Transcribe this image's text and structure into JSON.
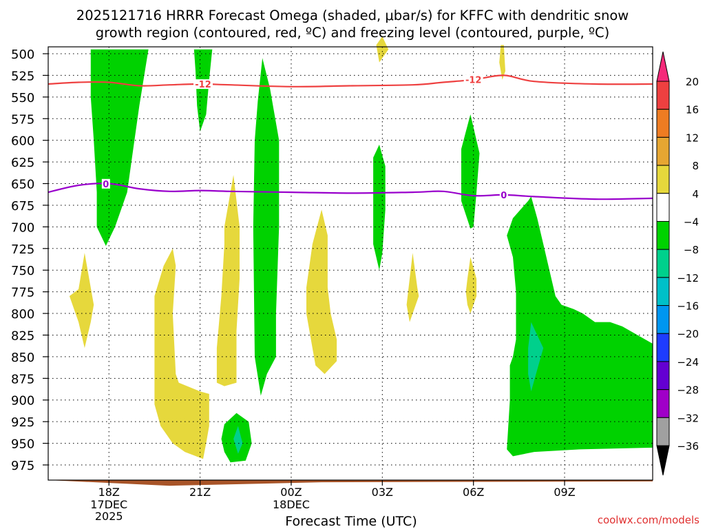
{
  "chart_data": {
    "type": "heatmap",
    "title_line1": "2025121716 HRRR Forecast Omega (shaded, μbar/s) for KFFC with dendritic snow",
    "title_line2": "growth region (contoured, red, ºC) and freezing level (contoured, purple, ºC)",
    "xlabel": "Forecast Time (UTC)",
    "ylabel": "",
    "y_ticks": [
      500,
      525,
      550,
      575,
      600,
      625,
      650,
      675,
      700,
      725,
      750,
      775,
      800,
      825,
      850,
      875,
      900,
      925,
      950,
      975
    ],
    "ylim": [
      1000,
      495
    ],
    "x_ticks": [
      {
        "hour": 18,
        "label": "18Z",
        "date": "17DEC",
        "year": "2025"
      },
      {
        "hour": 21,
        "label": "21Z",
        "date": "",
        "year": ""
      },
      {
        "hour": 24,
        "label": "00Z",
        "date": "18DEC",
        "year": ""
      },
      {
        "hour": 27,
        "label": "03Z",
        "date": "",
        "year": ""
      },
      {
        "hour": 30,
        "label": "06Z",
        "date": "",
        "year": ""
      },
      {
        "hour": 33,
        "label": "09Z",
        "date": "",
        "year": ""
      }
    ],
    "xlim": [
      16,
      35.9
    ],
    "grid": true,
    "colorbar": {
      "labels": [
        "20",
        "16",
        "12",
        "8",
        "4",
        "−4",
        "−8",
        "−12",
        "−16",
        "−20",
        "−24",
        "−28",
        "−32",
        "−36"
      ],
      "colors": [
        "#f52a7a",
        "#ee4040",
        "#ee7c22",
        "#e6a632",
        "#e6d83c",
        "#ffffff",
        "#00d200",
        "#00d08c",
        "#00c0c8",
        "#0096f0",
        "#1e3cff",
        "#6400d2",
        "#a000c8",
        "#a0a0a0",
        "#000000"
      ]
    },
    "contours": [
      {
        "label": "-12",
        "color": "#ee4040",
        "pressures": [
          535,
          533,
          533,
          537,
          536,
          535,
          536,
          538,
          537,
          536,
          533,
          530,
          525,
          532,
          535,
          535
        ]
      },
      {
        "label": "0",
        "color": "#9900cc",
        "pressures": [
          660,
          652,
          650,
          656,
          659,
          658,
          659,
          660,
          661,
          660,
          659,
          664,
          663,
          665,
          668,
          667
        ]
      }
    ],
    "contour_hours": [
      16,
      17,
      18,
      19,
      20,
      21,
      22,
      24,
      26,
      28,
      29,
      30,
      31,
      32,
      34,
      35.9
    ],
    "footer": "coolwx.com/models"
  }
}
